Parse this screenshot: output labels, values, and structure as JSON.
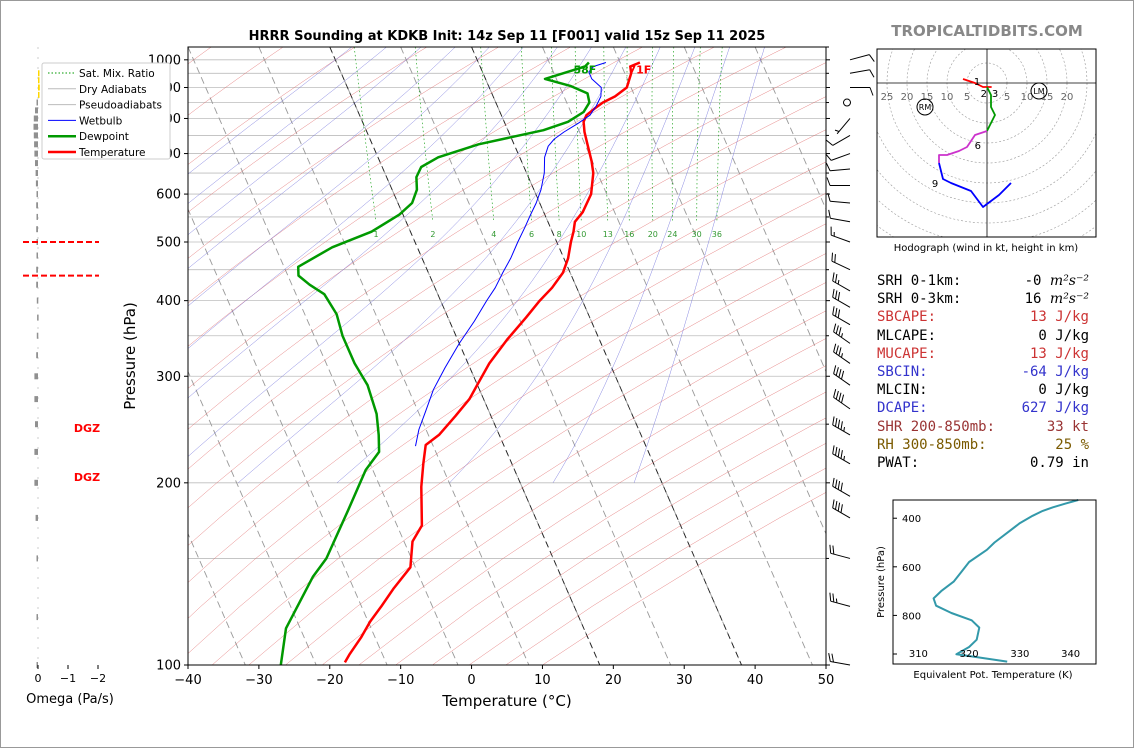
{
  "chart_data": [
    {
      "type": "line",
      "subtype": "skew-t log-p sounding",
      "title": "HRRR Sounding at KDKB Init: 14z Sep 11 [F001] valid 15z Sep 11 2025",
      "xlabel": "Temperature (°C)",
      "ylabel": "Pressure (hPa)",
      "xlim": [
        -40,
        50
      ],
      "ylim": [
        1050,
        100
      ],
      "yscale": "log",
      "xticks": [
        "−40",
        "−30",
        "−20",
        "−10",
        "0",
        "10",
        "20",
        "30",
        "40",
        "50"
      ],
      "yticks": [
        "100",
        "200",
        "300",
        "400",
        "500",
        "600",
        "700",
        "800",
        "900",
        "1000"
      ],
      "legend_position": "top-left",
      "legend": [
        "Sat. Mix. Ratio",
        "Dry Adiabats",
        "Pseudoadiabats",
        "Wetbulb",
        "Dewpoint",
        "Temperature"
      ],
      "mixing_ratio_labels": [
        "1",
        "2",
        "4",
        "6",
        "8",
        "10",
        "13",
        "16",
        "20",
        "24",
        "30",
        "36"
      ],
      "surface_temperature_label": "71F",
      "surface_dewpoint_label": "58F",
      "series": [
        {
          "name": "Temperature",
          "color": "#ff0000",
          "points": [
            [
              22.8,
              990
            ],
            [
              21.2,
              975
            ],
            [
              20.9,
              950
            ],
            [
              19.4,
              900
            ],
            [
              17.2,
              870
            ],
            [
              15.1,
              850
            ],
            [
              13.5,
              830
            ],
            [
              12.0,
              810
            ],
            [
              11.2,
              790
            ],
            [
              10.7,
              760
            ],
            [
              10.3,
              720
            ],
            [
              9.9,
              680
            ],
            [
              9.4,
              650
            ],
            [
              7.8,
              600
            ],
            [
              5.5,
              560
            ],
            [
              3.8,
              540
            ],
            [
              3.0,
              520
            ],
            [
              2.0,
              500
            ],
            [
              0.6,
              470
            ],
            [
              -1.0,
              445
            ],
            [
              -3.5,
              420
            ],
            [
              -6.0,
              400
            ],
            [
              -9.0,
              375
            ],
            [
              -13.0,
              345
            ],
            [
              -17.0,
              315
            ],
            [
              -19.8,
              292
            ],
            [
              -22.0,
              275
            ],
            [
              -25.0,
              258
            ],
            [
              -28.5,
              240
            ],
            [
              -31.0,
              231
            ],
            [
              -32.5,
              215
            ],
            [
              -34.2,
              197
            ],
            [
              -36.5,
              170
            ],
            [
              -38.8,
              160
            ],
            [
              -40.7,
              145
            ],
            [
              -44.3,
              134
            ],
            [
              -47.2,
              125
            ],
            [
              -49.7,
              118
            ],
            [
              -52.0,
              111
            ],
            [
              -54.7,
              104
            ],
            [
              -55.8,
              101
            ]
          ]
        },
        {
          "name": "Dewpoint",
          "color": "#009900",
          "points": [
            [
              15.6,
              990
            ],
            [
              14.8,
              975
            ],
            [
              12.0,
              955
            ],
            [
              8.4,
              930
            ],
            [
              11.6,
              905
            ],
            [
              13.5,
              880
            ],
            [
              13.2,
              850
            ],
            [
              11.8,
              820
            ],
            [
              9.0,
              790
            ],
            [
              5.0,
              765
            ],
            [
              -5.0,
              725
            ],
            [
              -11.5,
              690
            ],
            [
              -14.5,
              665
            ],
            [
              -15.8,
              640
            ],
            [
              -16.5,
              610
            ],
            [
              -18.0,
              580
            ],
            [
              -20.5,
              555
            ],
            [
              -25.5,
              520
            ],
            [
              -32.0,
              490
            ],
            [
              -38.0,
              455
            ],
            [
              -38.5,
              440
            ],
            [
              -37.5,
              425
            ],
            [
              -36.0,
              410
            ],
            [
              -35.5,
              380
            ],
            [
              -36.0,
              350
            ],
            [
              -36.0,
              315
            ],
            [
              -35.5,
              290
            ],
            [
              -36.0,
              260
            ],
            [
              -37.0,
              240
            ],
            [
              -38.0,
              225
            ],
            [
              -41.0,
              210
            ],
            [
              -46.0,
              180
            ],
            [
              -52.0,
              150
            ],
            [
              -55.0,
              140
            ],
            [
              -62.0,
              115
            ],
            [
              -65.0,
              100
            ]
          ]
        },
        {
          "name": "Wetbulb",
          "color": "#0000ff",
          "points": [
            [
              18.0,
              990
            ],
            [
              16.0,
              975
            ],
            [
              15.0,
              955
            ],
            [
              15.0,
              930
            ],
            [
              15.8,
              900
            ],
            [
              15.2,
              870
            ],
            [
              14.0,
              840
            ],
            [
              12.5,
              810
            ],
            [
              10.3,
              785
            ],
            [
              7.8,
              760
            ],
            [
              6.0,
              740
            ],
            [
              4.7,
              720
            ],
            [
              3.5,
              690
            ],
            [
              2.5,
              650
            ],
            [
              1.0,
              610
            ],
            [
              -0.5,
              580
            ],
            [
              -2.0,
              555
            ],
            [
              -3.5,
              530
            ],
            [
              -5.5,
              500
            ],
            [
              -7.5,
              470
            ],
            [
              -9.5,
              445
            ],
            [
              -11.5,
              420
            ],
            [
              -13.5,
              400
            ],
            [
              -16.5,
              370
            ],
            [
              -20.0,
              340
            ],
            [
              -23.5,
              310
            ],
            [
              -26.5,
              285
            ],
            [
              -29.0,
              262
            ],
            [
              -31.0,
              245
            ],
            [
              -32.5,
              230
            ]
          ]
        }
      ]
    },
    {
      "type": "bar",
      "subtype": "vertical velocity profile",
      "xlabel": "Omega (Pa/s)",
      "xticks": [
        "0",
        "−1",
        "−2"
      ],
      "dgz_label": "DGZ",
      "dgz_bounds_hPa": [
        440,
        500
      ],
      "colors": {
        "downward": "#909090",
        "upward": "#ffd700",
        "dgz": "#ff0000"
      },
      "levels_hPa": [
        100,
        120,
        150,
        175,
        200,
        225,
        250,
        275,
        300,
        325,
        350,
        375,
        400,
        425,
        450,
        475,
        500,
        525,
        550,
        575,
        600,
        625,
        650,
        675,
        700,
        725,
        750,
        775,
        800,
        825,
        850,
        875,
        900,
        925,
        950
      ],
      "values": [
        0.05,
        0.05,
        0.05,
        0.08,
        0.12,
        0.12,
        0.1,
        0.12,
        0.12,
        0.06,
        0.04,
        0.03,
        0.04,
        0.06,
        0.06,
        0.05,
        0.05,
        0.06,
        0.05,
        0.06,
        0.05,
        0.07,
        0.08,
        0.1,
        0.12,
        0.13,
        0.14,
        0.15,
        0.14,
        0.1,
        0.05,
        -0.04,
        -0.06,
        -0.05,
        -0.03
      ]
    },
    {
      "type": "line",
      "subtype": "equivalent potential temperature profile",
      "xlabel": "Equivalent Pot. Temperature (K)",
      "ylabel": "Pressure (hPa)",
      "xlim": [
        305,
        345
      ],
      "ylim": [
        1000,
        325
      ],
      "xticks": [
        "310",
        "320",
        "330",
        "340"
      ],
      "yticks": [
        "400",
        "600",
        "800"
      ],
      "color": "#3399aa",
      "points": [
        [
          327.5,
          990
        ],
        [
          321.0,
          970
        ],
        [
          317.5,
          960
        ],
        [
          320.0,
          930
        ],
        [
          321.5,
          900
        ],
        [
          322.0,
          850
        ],
        [
          320.5,
          820
        ],
        [
          316.5,
          790
        ],
        [
          313.5,
          760
        ],
        [
          313.0,
          730
        ],
        [
          314.5,
          700
        ],
        [
          317.0,
          660
        ],
        [
          318.5,
          620
        ],
        [
          320.0,
          580
        ],
        [
          323.5,
          530
        ],
        [
          325.0,
          500
        ],
        [
          327.5,
          460
        ],
        [
          330.0,
          420
        ],
        [
          332.5,
          390
        ],
        [
          334.5,
          370
        ],
        [
          336.5,
          355
        ],
        [
          339.0,
          340
        ],
        [
          341.5,
          325
        ]
      ]
    },
    {
      "type": "line",
      "subtype": "hodograph",
      "caption": "Hodograph (wind in kt, height in km)",
      "ring_labels_left": [
        "25",
        "20",
        "15",
        "10",
        "5"
      ],
      "ring_labels_right": [
        "5",
        "10",
        "15",
        "20"
      ],
      "marker_labels": [
        "RM",
        "LM"
      ],
      "height_labels": [
        "1",
        "2",
        "3",
        "6",
        "9"
      ],
      "segments": [
        {
          "color": "#ff0000",
          "points": [
            [
              -6,
              1
            ],
            [
              -3,
              0
            ],
            [
              -1,
              -1
            ],
            [
              1,
              -1
            ],
            [
              0,
              -1
            ]
          ]
        },
        {
          "color": "#009900",
          "points": [
            [
              0,
              -1
            ],
            [
              1,
              -3
            ],
            [
              1,
              -6
            ],
            [
              2,
              -8
            ],
            [
              1,
              -10
            ],
            [
              0,
              -12
            ]
          ]
        },
        {
          "color": "#cc33cc",
          "points": [
            [
              0,
              -12
            ],
            [
              -3,
              -13
            ],
            [
              -5,
              -16
            ],
            [
              -7,
              -17
            ],
            [
              -10,
              -18
            ],
            [
              -12,
              -18
            ],
            [
              -12,
              -20
            ]
          ]
        },
        {
          "color": "#0000ff",
          "points": [
            [
              -12,
              -20
            ],
            [
              -11,
              -24
            ],
            [
              -9,
              -25
            ],
            [
              -4,
              -27
            ],
            [
              -1,
              -31
            ],
            [
              3,
              -28
            ],
            [
              6,
              -25
            ]
          ]
        }
      ]
    }
  ],
  "branding": {
    "text": "TROPICALTIDBITS.COM"
  },
  "parameters": [
    {
      "label": "SRH 0-1km:",
      "value": "-0",
      "unit_html": "m²s⁻²",
      "color": "#000000"
    },
    {
      "label": "SRH 0-3km:",
      "value": "16",
      "unit_html": "m²s⁻²",
      "color": "#000000"
    },
    {
      "label": "SBCAPE:",
      "value": "13 J/kg",
      "color": "#cc3333"
    },
    {
      "label": "MLCAPE:",
      "value": "0 J/kg",
      "color": "#000000"
    },
    {
      "label": "MUCAPE:",
      "value": "13 J/kg",
      "color": "#cc3333"
    },
    {
      "label": "SBCIN:",
      "value": "-64 J/kg",
      "color": "#3333cc"
    },
    {
      "label": "MLCIN:",
      "value": "0 J/kg",
      "color": "#000000"
    },
    {
      "label": "DCAPE:",
      "value": "627 J/kg",
      "color": "#3333cc"
    },
    {
      "label": "SHR 200-850mb:",
      "value": "33 kt",
      "color": "#993333"
    },
    {
      "label": "RH 300-850mb:",
      "value": "25 %",
      "color": "#7a5a00"
    },
    {
      "label": "PWAT:",
      "value": "0.79 in",
      "color": "#000000"
    }
  ],
  "wind_barbs": {
    "color": "#000000",
    "levels": [
      {
        "p": 100,
        "dir": 280,
        "kt": 20
      },
      {
        "p": 125,
        "dir": 285,
        "kt": 25
      },
      {
        "p": 150,
        "dir": 285,
        "kt": 20
      },
      {
        "p": 175,
        "dir": 300,
        "kt": 40
      },
      {
        "p": 190,
        "dir": 300,
        "kt": 40
      },
      {
        "p": 215,
        "dir": 300,
        "kt": 45
      },
      {
        "p": 240,
        "dir": 300,
        "kt": 45
      },
      {
        "p": 265,
        "dir": 305,
        "kt": 40
      },
      {
        "p": 290,
        "dir": 305,
        "kt": 40
      },
      {
        "p": 315,
        "dir": 305,
        "kt": 35
      },
      {
        "p": 340,
        "dir": 305,
        "kt": 35
      },
      {
        "p": 365,
        "dir": 300,
        "kt": 30
      },
      {
        "p": 390,
        "dir": 300,
        "kt": 30
      },
      {
        "p": 415,
        "dir": 300,
        "kt": 25
      },
      {
        "p": 450,
        "dir": 295,
        "kt": 20
      },
      {
        "p": 500,
        "dir": 290,
        "kt": 15
      },
      {
        "p": 540,
        "dir": 280,
        "kt": 10
      },
      {
        "p": 580,
        "dir": 275,
        "kt": 10
      },
      {
        "p": 620,
        "dir": 270,
        "kt": 10
      },
      {
        "p": 660,
        "dir": 265,
        "kt": 10
      },
      {
        "p": 700,
        "dir": 250,
        "kt": 10
      },
      {
        "p": 750,
        "dir": 240,
        "kt": 10
      },
      {
        "p": 800,
        "dir": 220,
        "kt": 5
      },
      {
        "p": 850,
        "dir": 0,
        "kt": 0
      },
      {
        "p": 900,
        "dir": 90,
        "kt": 10
      },
      {
        "p": 950,
        "dir": 80,
        "kt": 10
      },
      {
        "p": 1000,
        "dir": 75,
        "kt": 10
      }
    ]
  }
}
